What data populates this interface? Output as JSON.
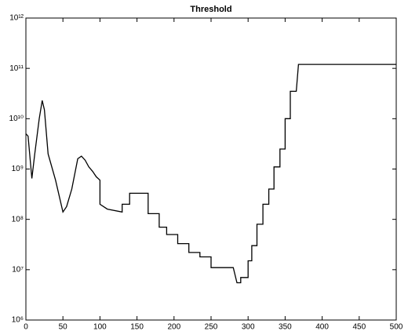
{
  "chart_data": {
    "type": "line",
    "title": "Threshold",
    "x": [
      0,
      3,
      8,
      12,
      18,
      22,
      25,
      30,
      40,
      50,
      55,
      62,
      70,
      75,
      80,
      85,
      90,
      95,
      100,
      100,
      110,
      130,
      130,
      140,
      140,
      165,
      165,
      180,
      180,
      190,
      190,
      205,
      205,
      220,
      220,
      235,
      235,
      250,
      250,
      280,
      285,
      290,
      290,
      300,
      300,
      305,
      305,
      312,
      312,
      320,
      320,
      328,
      328,
      335,
      335,
      343,
      343,
      350,
      350,
      357,
      357,
      365,
      368,
      500
    ],
    "series": [
      {
        "name": "Threshold",
        "color": "#000000",
        "values": [
          5000000000.0,
          4500000000.0,
          650000000.0,
          2000000000.0,
          10000000000.0,
          23000000000.0,
          15000000000.0,
          2000000000.0,
          600000000.0,
          140000000.0,
          180000000.0,
          400000000.0,
          1600000000.0,
          1800000000.0,
          1500000000.0,
          1100000000.0,
          900000000.0,
          700000000.0,
          600000000.0,
          200000000.0,
          160000000.0,
          140000000.0,
          200000000.0,
          200000000.0,
          330000000.0,
          330000000.0,
          130000000.0,
          130000000.0,
          70000000.0,
          70000000.0,
          50000000.0,
          50000000.0,
          33000000.0,
          33000000.0,
          22000000.0,
          22000000.0,
          18000000.0,
          18000000.0,
          11000000.0,
          11000000.0,
          5500000.0,
          5500000.0,
          7000000.0,
          7000000.0,
          15000000.0,
          15000000.0,
          30000000.0,
          30000000.0,
          80000000.0,
          80000000.0,
          200000000.0,
          200000000.0,
          400000000.0,
          400000000.0,
          1100000000.0,
          1100000000.0,
          2500000000.0,
          2500000000.0,
          10000000000.0,
          10000000000.0,
          35000000000.0,
          35000000000.0,
          120000000000.0,
          120000000000.0
        ]
      }
    ],
    "xlim": [
      0,
      500
    ],
    "xticks": [
      0,
      50,
      100,
      150,
      200,
      250,
      300,
      350,
      400,
      450,
      500
    ],
    "ylim": [
      1000000,
      1000000000000
    ],
    "log_y": true,
    "yticks": [
      {
        "value": 1000000,
        "label": "10⁶"
      },
      {
        "value": 10000000,
        "label": "10⁷"
      },
      {
        "value": 100000000,
        "label": "10⁸"
      },
      {
        "value": 1000000000,
        "label": "10⁹"
      },
      {
        "value": 10000000000,
        "label": "10¹⁰"
      },
      {
        "value": 100000000000,
        "label": "10¹¹"
      },
      {
        "value": 1000000000000,
        "label": "10¹²"
      }
    ],
    "grid": false
  }
}
